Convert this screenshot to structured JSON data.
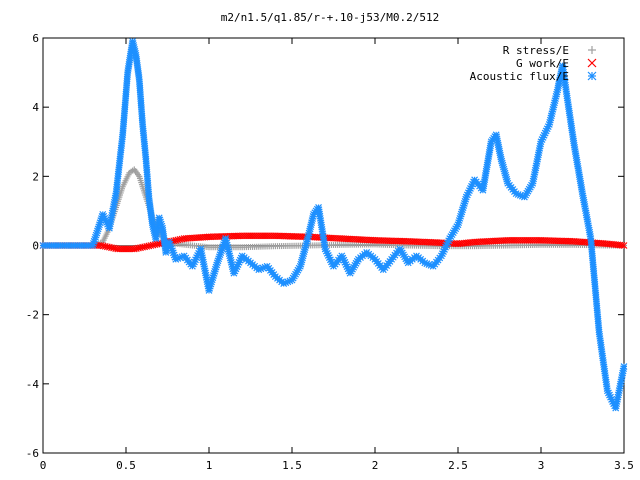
{
  "chart_data": {
    "type": "scatter",
    "title": "m2/n1.5/q1.85/r-+.10-j53/M0.2/512",
    "xlabel": "",
    "ylabel": "",
    "xlim": [
      0,
      3.5
    ],
    "ylim": [
      -6,
      6
    ],
    "x_ticks": [
      "0",
      "0.5",
      "1",
      "1.5",
      "2",
      "2.5",
      "3",
      "3.5"
    ],
    "y_ticks": [
      "6",
      "4",
      "2",
      "0",
      "-2",
      "-4",
      "-6"
    ],
    "grid": false,
    "legend_position": "top-right",
    "series": [
      {
        "name": "R stress/E",
        "marker": "plus",
        "color": "#a0a0a0",
        "x": [
          0.0,
          0.3,
          0.36,
          0.4,
          0.44,
          0.48,
          0.52,
          0.55,
          0.58,
          0.62,
          0.66,
          0.7,
          0.74,
          0.8,
          0.9,
          1.0,
          1.2,
          1.4,
          1.6,
          1.8,
          2.0,
          2.2,
          2.4,
          2.6,
          2.8,
          3.0,
          3.2,
          3.4,
          3.5
        ],
        "y": [
          0.0,
          0.0,
          0.1,
          0.5,
          1.1,
          1.7,
          2.1,
          2.2,
          2.0,
          1.4,
          0.8,
          0.35,
          0.15,
          0.05,
          0.0,
          -0.05,
          -0.05,
          -0.02,
          0.0,
          0.02,
          0.03,
          0.0,
          -0.02,
          -0.02,
          0.0,
          0.02,
          0.02,
          0.0,
          0.0
        ]
      },
      {
        "name": "G work/E",
        "marker": "cross",
        "color": "#ff0000",
        "x": [
          0.0,
          0.35,
          0.45,
          0.55,
          0.65,
          0.75,
          0.85,
          1.0,
          1.2,
          1.4,
          1.6,
          1.8,
          2.0,
          2.2,
          2.4,
          2.5,
          2.6,
          2.8,
          3.0,
          3.2,
          3.4,
          3.5
        ],
        "y": [
          0.0,
          0.0,
          -0.1,
          -0.1,
          0.0,
          0.1,
          0.2,
          0.25,
          0.28,
          0.28,
          0.25,
          0.2,
          0.15,
          0.12,
          0.08,
          0.05,
          0.1,
          0.15,
          0.15,
          0.12,
          0.05,
          0.0
        ]
      },
      {
        "name": "Acoustic flux/E",
        "marker": "star",
        "color": "#1e90ff",
        "x": [
          0.0,
          0.3,
          0.36,
          0.4,
          0.44,
          0.48,
          0.51,
          0.54,
          0.56,
          0.58,
          0.6,
          0.62,
          0.64,
          0.66,
          0.68,
          0.7,
          0.72,
          0.74,
          0.76,
          0.8,
          0.85,
          0.9,
          0.95,
          1.0,
          1.05,
          1.1,
          1.15,
          1.2,
          1.25,
          1.3,
          1.35,
          1.4,
          1.45,
          1.5,
          1.55,
          1.6,
          1.63,
          1.66,
          1.7,
          1.75,
          1.8,
          1.85,
          1.9,
          1.95,
          2.0,
          2.05,
          2.1,
          2.15,
          2.2,
          2.25,
          2.3,
          2.35,
          2.4,
          2.45,
          2.5,
          2.55,
          2.6,
          2.65,
          2.7,
          2.73,
          2.76,
          2.8,
          2.85,
          2.9,
          2.95,
          3.0,
          3.05,
          3.1,
          3.13,
          3.16,
          3.2,
          3.25,
          3.3,
          3.35,
          3.4,
          3.45,
          3.5
        ],
        "y": [
          0.0,
          0.0,
          0.9,
          0.5,
          1.5,
          3.2,
          5.0,
          5.9,
          5.5,
          4.8,
          3.5,
          2.5,
          1.3,
          0.6,
          0.2,
          0.8,
          0.5,
          -0.2,
          0.1,
          -0.4,
          -0.3,
          -0.6,
          -0.1,
          -1.3,
          -0.5,
          0.2,
          -0.8,
          -0.3,
          -0.5,
          -0.7,
          -0.6,
          -0.9,
          -1.1,
          -1.0,
          -0.6,
          0.3,
          0.9,
          1.1,
          -0.1,
          -0.6,
          -0.3,
          -0.8,
          -0.4,
          -0.2,
          -0.4,
          -0.7,
          -0.4,
          -0.1,
          -0.5,
          -0.3,
          -0.5,
          -0.6,
          -0.3,
          0.2,
          0.6,
          1.4,
          1.9,
          1.6,
          3.0,
          3.2,
          2.5,
          1.8,
          1.5,
          1.4,
          1.8,
          3.0,
          3.5,
          4.5,
          5.2,
          4.2,
          2.9,
          1.5,
          0.2,
          -2.5,
          -4.2,
          -4.7,
          -3.5
        ]
      }
    ]
  }
}
